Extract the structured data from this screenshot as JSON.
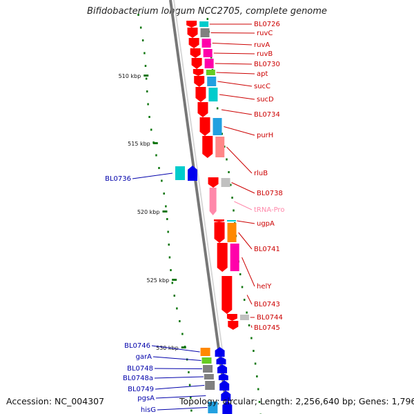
{
  "title": "Bifidobacterium longum NCC2705, complete genome",
  "footer": {
    "accession": "Accession: NC_004307",
    "stats": "Topology: circular; Length: 2,256,640 bp; Genes: 1,796"
  },
  "colors": {
    "forward_strand": "#ff0000",
    "reverse_strand": "#0000ee",
    "forward_label": "#cc0000",
    "reverse_label": "#0000aa",
    "trna_label": "#ff88aa",
    "backbone": "#777777",
    "gc_ticks": "#117711",
    "cog_colors": [
      "#00cccc",
      "#ff00aa",
      "#808080",
      "#ff8800",
      "#66cc22",
      "#c0c0c0",
      "#ff8888",
      "#22a0e0"
    ]
  },
  "kbp_ticks": [
    "510 kbp",
    "515 kbp",
    "520 kbp",
    "525 kbp",
    "530 kbp"
  ],
  "genes_forward": [
    {
      "label": "BL0726",
      "cog": "cyan"
    },
    {
      "label": "ruvC",
      "cog": "gray"
    },
    {
      "label": "ruvA",
      "cog": "magenta"
    },
    {
      "label": "ruvB",
      "cog": "magenta"
    },
    {
      "label": "BL0730",
      "cog": "magenta"
    },
    {
      "label": "apt",
      "cog": "green"
    },
    {
      "label": "sucC",
      "cog": "blue"
    },
    {
      "label": "sucD",
      "cog": "cyan"
    },
    {
      "label": "BL0734",
      "cog": "none"
    },
    {
      "label": "purH",
      "cog": "blue"
    },
    {
      "label": "rluB",
      "cog": "pink"
    },
    {
      "label": "BL0738",
      "cog": "silver"
    },
    {
      "label": "tRNA-Pro",
      "cog": "none"
    },
    {
      "label": "ugpA",
      "cog": "cyan"
    },
    {
      "label": "BL0741",
      "cog": "orange"
    },
    {
      "label": "helY",
      "cog": "magenta"
    },
    {
      "label": "BL0743",
      "cog": "none"
    },
    {
      "label": "BL0744",
      "cog": "silver"
    },
    {
      "label": "BL0745",
      "cog": "none"
    }
  ],
  "genes_reverse": [
    {
      "label": "BL0736",
      "cog": "cyan"
    },
    {
      "label": "BL0746",
      "cog": "orange"
    },
    {
      "label": "garA",
      "cog": "green"
    },
    {
      "label": "BL0748",
      "cog": "gray"
    },
    {
      "label": "BL0748a",
      "cog": "gray"
    },
    {
      "label": "BL0749",
      "cog": "gray"
    },
    {
      "label": "pgsA",
      "cog": "none"
    },
    {
      "label": "hisG",
      "cog": "blue"
    }
  ]
}
